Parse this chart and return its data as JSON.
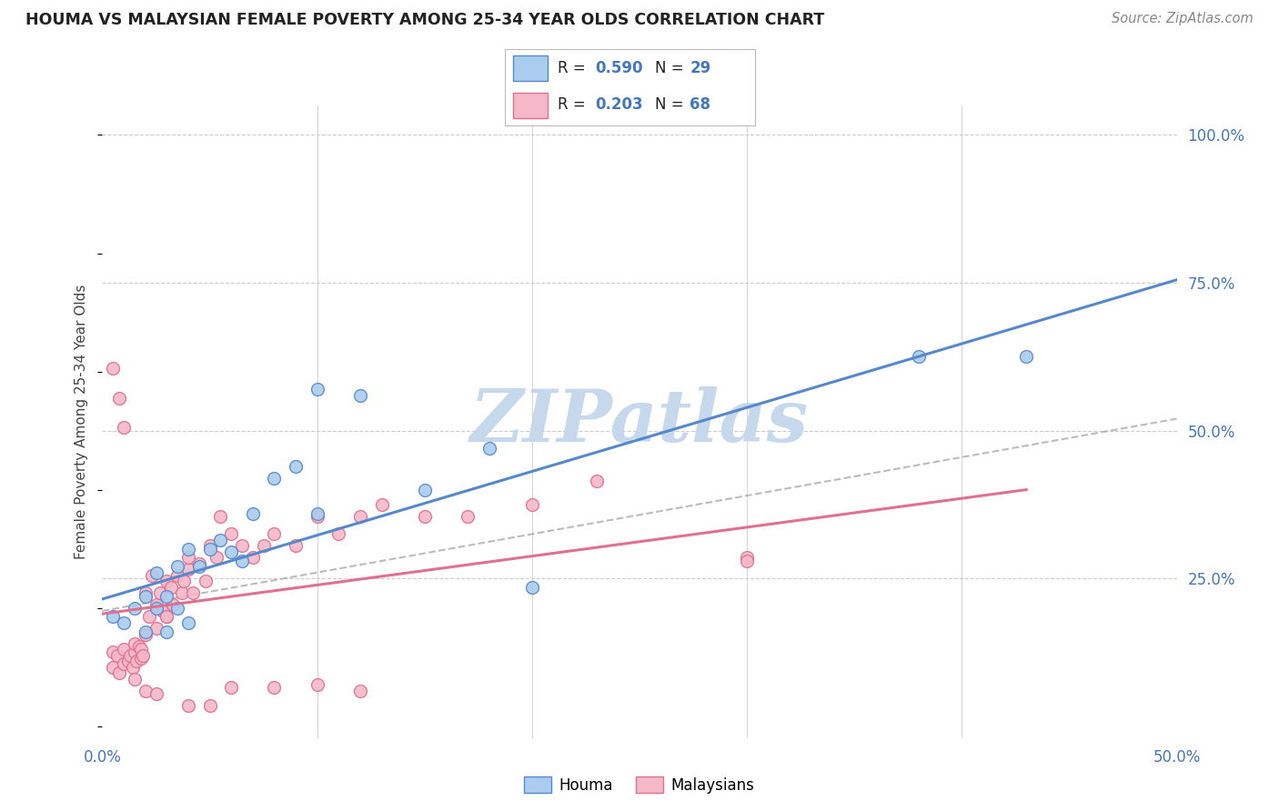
{
  "title": "HOUMA VS MALAYSIAN FEMALE POVERTY AMONG 25-34 YEAR OLDS CORRELATION CHART",
  "source": "Source: ZipAtlas.com",
  "ylabel": "Female Poverty Among 25-34 Year Olds",
  "xlim": [
    0.0,
    0.5
  ],
  "ylim": [
    -0.02,
    1.05
  ],
  "background_color": "#ffffff",
  "grid_color": "#cccccc",
  "houma_color": "#aaccee",
  "houma_edge_color": "#5588cc",
  "malaysian_color": "#f5b8c8",
  "malaysian_edge_color": "#e07090",
  "houma_R": 0.59,
  "houma_N": 29,
  "malaysian_R": 0.203,
  "malaysian_N": 68,
  "watermark_color": "#c5d8ec",
  "houma_line_x": [
    0.0,
    0.5
  ],
  "houma_line_y": [
    0.215,
    0.755
  ],
  "malaysian_line_x": [
    0.0,
    0.43
  ],
  "malaysian_line_y": [
    0.19,
    0.4
  ],
  "malaysian_dashed_line_x": [
    0.0,
    0.5
  ],
  "malaysian_dashed_line_y": [
    0.195,
    0.52
  ],
  "houma_scatter_x": [
    0.005,
    0.01,
    0.015,
    0.02,
    0.02,
    0.025,
    0.025,
    0.03,
    0.03,
    0.035,
    0.035,
    0.04,
    0.04,
    0.045,
    0.05,
    0.055,
    0.06,
    0.065,
    0.07,
    0.08,
    0.09,
    0.1,
    0.1,
    0.12,
    0.15,
    0.18,
    0.2,
    0.38,
    0.43
  ],
  "houma_scatter_y": [
    0.185,
    0.175,
    0.2,
    0.22,
    0.16,
    0.2,
    0.26,
    0.22,
    0.16,
    0.2,
    0.27,
    0.3,
    0.175,
    0.27,
    0.3,
    0.315,
    0.295,
    0.28,
    0.36,
    0.42,
    0.44,
    0.36,
    0.57,
    0.56,
    0.4,
    0.47,
    0.235,
    0.625,
    0.625
  ],
  "malaysian_scatter_x": [
    0.005,
    0.005,
    0.007,
    0.008,
    0.01,
    0.01,
    0.012,
    0.013,
    0.014,
    0.015,
    0.015,
    0.016,
    0.017,
    0.018,
    0.018,
    0.019,
    0.02,
    0.02,
    0.022,
    0.023,
    0.025,
    0.025,
    0.027,
    0.028,
    0.03,
    0.03,
    0.032,
    0.033,
    0.035,
    0.037,
    0.038,
    0.04,
    0.04,
    0.042,
    0.045,
    0.048,
    0.05,
    0.053,
    0.055,
    0.06,
    0.065,
    0.07,
    0.075,
    0.08,
    0.09,
    0.1,
    0.11,
    0.12,
    0.13,
    0.15,
    0.17,
    0.2,
    0.23,
    0.3,
    0.005,
    0.008,
    0.01,
    0.015,
    0.02,
    0.025,
    0.03,
    0.04,
    0.05,
    0.06,
    0.08,
    0.1,
    0.12,
    0.3
  ],
  "malaysian_scatter_y": [
    0.125,
    0.1,
    0.12,
    0.09,
    0.13,
    0.105,
    0.11,
    0.12,
    0.1,
    0.125,
    0.14,
    0.11,
    0.135,
    0.13,
    0.115,
    0.12,
    0.155,
    0.225,
    0.185,
    0.255,
    0.205,
    0.165,
    0.225,
    0.195,
    0.245,
    0.185,
    0.235,
    0.205,
    0.255,
    0.225,
    0.245,
    0.265,
    0.285,
    0.225,
    0.275,
    0.245,
    0.305,
    0.285,
    0.355,
    0.325,
    0.305,
    0.285,
    0.305,
    0.325,
    0.305,
    0.355,
    0.325,
    0.355,
    0.375,
    0.355,
    0.355,
    0.375,
    0.415,
    0.285,
    0.605,
    0.555,
    0.505,
    0.08,
    0.06,
    0.055,
    0.185,
    0.035,
    0.035,
    0.065,
    0.065,
    0.07,
    0.06,
    0.28
  ]
}
